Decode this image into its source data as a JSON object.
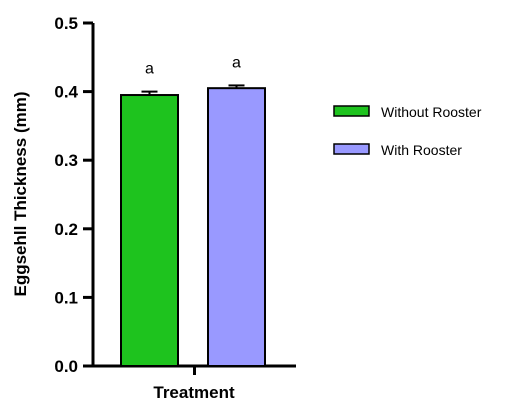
{
  "chart_data": {
    "type": "bar",
    "xlabel": "Treatment",
    "ylabel": "Eggsehll Thickness (mm)",
    "ylim": [
      0,
      0.5
    ],
    "yticks": [
      "0.0",
      "0.1",
      "0.2",
      "0.3",
      "0.4",
      "0.5"
    ],
    "grid": false,
    "legend_position": "right",
    "series": [
      {
        "name": "Without Rooster",
        "value": 0.395,
        "error": 0.005,
        "color": "#1ec31e",
        "significance": "a"
      },
      {
        "name": "With Rooster",
        "value": 0.405,
        "error": 0.004,
        "color": "#9999ff",
        "significance": "a"
      }
    ]
  }
}
